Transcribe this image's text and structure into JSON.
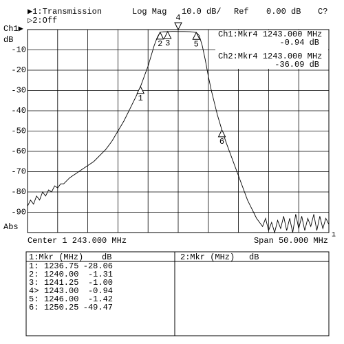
{
  "header": {
    "ch1": "▶1:Transmission",
    "ch2": "▷2:Off",
    "format": "Log Mag",
    "scale": "10.0 dB/",
    "ref_label": "Ref",
    "ref_value": "0.00 dB",
    "status": "C?",
    "channel": "Ch1▶",
    "unit": "dB",
    "abs": "Abs"
  },
  "footer": {
    "center": "Center 1 243.000 MHz",
    "span": "Span 50.000 MHz",
    "end_marker": "1"
  },
  "readout": {
    "ch1_freq": "Ch1:Mkr4 1243.000 MHz",
    "ch1_value": "-0.94 dB",
    "ch2_freq": "Ch2:Mkr4 1243.000 MHz",
    "ch2_value": "-36.09 dB"
  },
  "table": {
    "left_header": [
      "1:Mkr (MHz)",
      "dB"
    ],
    "right_header": [
      "2:Mkr (MHz)",
      "dB"
    ],
    "rows": [
      [
        "1:",
        "1236.75",
        "-28.06"
      ],
      [
        "2:",
        "1240.00",
        "-1.31"
      ],
      [
        "3:",
        "1241.25",
        "-1.00"
      ],
      [
        "4>",
        "1243.00",
        "-0.94"
      ],
      [
        "5:",
        "1246.00",
        "-1.42"
      ],
      [
        "6:",
        "1250.25",
        "-49.47"
      ]
    ]
  },
  "chart_data": {
    "type": "line",
    "color": "#000000",
    "grid": true,
    "xlim": [
      1218,
      1268
    ],
    "xticks": [
      1223,
      1228,
      1233,
      1238,
      1243,
      1248,
      1253,
      1258,
      1263
    ],
    "ylim": [
      -100,
      0
    ],
    "yticks": [
      -10,
      -20,
      -30,
      -40,
      -50,
      -60,
      -70,
      -80,
      -90
    ],
    "x": [
      1218,
      1218.5,
      1219,
      1219.5,
      1220,
      1220.5,
      1221,
      1221.5,
      1222,
      1222.5,
      1223,
      1223.5,
      1224,
      1225,
      1226,
      1227,
      1228,
      1229,
      1230,
      1231,
      1232,
      1233,
      1234,
      1235,
      1236,
      1236.75,
      1237.5,
      1238,
      1238.5,
      1239,
      1239.5,
      1240,
      1240.5,
      1241.25,
      1242,
      1243,
      1244,
      1245,
      1246,
      1246.5,
      1247,
      1247.5,
      1248,
      1248.5,
      1249,
      1249.5,
      1250.25,
      1251,
      1251.5,
      1252,
      1252.5,
      1253,
      1253.5,
      1254,
      1254.5,
      1255,
      1255.5,
      1256,
      1256.5,
      1257,
      1257.5,
      1258,
      1258.5,
      1259,
      1259.5,
      1260,
      1260.5,
      1261,
      1261.5,
      1262,
      1262.5,
      1263,
      1263.5,
      1264,
      1264.5,
      1265,
      1265.5,
      1266,
      1266.5,
      1267,
      1267.5,
      1268
    ],
    "values": [
      -87,
      -84,
      -86,
      -82,
      -84,
      -80,
      -82,
      -79,
      -80,
      -77,
      -78,
      -76,
      -76,
      -73,
      -71,
      -69,
      -67,
      -65,
      -62,
      -59,
      -55,
      -50,
      -45,
      -39,
      -33,
      -28.06,
      -22,
      -18,
      -13,
      -8,
      -4,
      -1.31,
      -1.1,
      -1.0,
      -0.9,
      -0.94,
      -0.95,
      -1.05,
      -1.42,
      -3,
      -8,
      -15,
      -23,
      -30,
      -36,
      -42,
      -49.47,
      -56,
      -60,
      -64,
      -68,
      -72,
      -76,
      -80,
      -84,
      -87,
      -90,
      -93,
      -95,
      -97,
      -93,
      -99,
      -95,
      -100,
      -94,
      -98,
      -92,
      -99,
      -93,
      -100,
      -91,
      -98,
      -92,
      -99,
      -93,
      -97,
      -91,
      -99,
      -92,
      -98,
      -93,
      -96
    ],
    "markers": [
      {
        "label": "1",
        "x": 1236.75,
        "y": -28.06,
        "position": "below"
      },
      {
        "label": "2",
        "x": 1240,
        "y": -1.31,
        "position": "below"
      },
      {
        "label": "3",
        "x": 1241.25,
        "y": -1.0,
        "position": "below"
      },
      {
        "label": "4",
        "x": 1243,
        "y": -0.94,
        "position": "top"
      },
      {
        "label": "5",
        "x": 1246,
        "y": -1.42,
        "position": "below"
      },
      {
        "label": "6",
        "x": 1250.25,
        "y": -49.47,
        "position": "below"
      }
    ]
  }
}
